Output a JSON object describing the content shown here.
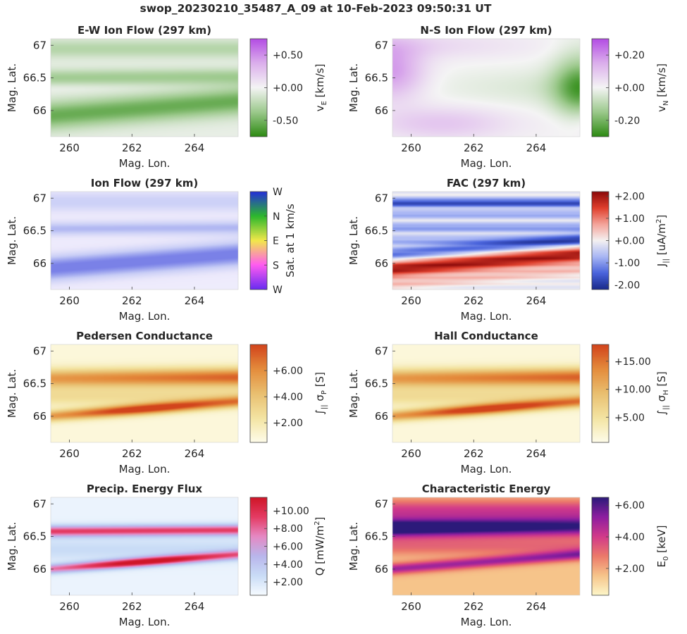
{
  "figure_title": "swop_20230210_35487_A_09 at 10-Feb-2023 09:50:31 UT",
  "chart_data": [
    {
      "type": "heatmap",
      "id": "ew",
      "title": "E-W Ion Flow (297 km)",
      "xlabel": "Mag. Lon.",
      "ylabel": "Mag. Lat.",
      "xlim": [
        259.4,
        265.4
      ],
      "ylim": [
        65.6,
        67.1
      ],
      "xticks": [
        260,
        262,
        264
      ],
      "yticks": [
        66,
        66.5,
        67
      ],
      "colorbar": {
        "label": "v_E [km/s]",
        "label_main": "v",
        "label_sub": "E",
        "label_rest": " [km/s]",
        "ticks": [
          "+0.50",
          "+0.00",
          "-0.50"
        ],
        "tick_values": [
          0.5,
          0.0,
          -0.5
        ],
        "range": [
          -0.75,
          0.75
        ],
        "colors": [
          "#2e8b14",
          "#9cc98c",
          "#f4f4f4",
          "#dcb0ec",
          "#b44ee4"
        ]
      },
      "colormap": [
        "#2e8b14",
        "#9cc98c",
        "#f4f4f4",
        "#dcb0ec",
        "#b44ee4"
      ],
      "field": {
        "bands": [
          [
            -0.55,
            65.95,
            0.1,
            -0.45
          ],
          [
            -0.25,
            66.55,
            0.1,
            -0.05
          ],
          [
            0.08,
            66.95,
            0.06,
            0.0
          ]
        ],
        "base": -0.15,
        "pattern": "ew"
      }
    },
    {
      "type": "heatmap",
      "id": "ns",
      "title": "N-S Ion Flow (297 km)",
      "xlabel": "Mag. Lon.",
      "ylabel": "Mag. Lat.",
      "xlim": [
        259.4,
        265.4
      ],
      "ylim": [
        65.6,
        67.1
      ],
      "xticks": [
        260,
        262,
        264
      ],
      "yticks": [
        66,
        66.5,
        67
      ],
      "colorbar": {
        "label": "v_N [km/s]",
        "label_main": "v",
        "label_sub": "N",
        "label_rest": " [km/s]",
        "ticks": [
          "+0.20",
          "+0.00",
          "-0.20"
        ],
        "tick_values": [
          0.2,
          0.0,
          -0.2
        ],
        "range": [
          -0.3,
          0.3
        ],
        "colors": [
          "#2e8b14",
          "#9cc98c",
          "#f4f4f4",
          "#dcb0ec",
          "#b44ee4"
        ]
      },
      "colormap": [
        "#2e8b14",
        "#9cc98c",
        "#f4f4f4",
        "#dcb0ec",
        "#b44ee4"
      ],
      "field": {
        "pattern": "ns"
      }
    },
    {
      "type": "heatmap",
      "id": "flow",
      "title": "Ion Flow (297 km)",
      "xlabel": "Mag. Lon.",
      "ylabel": "Mag. Lat.",
      "xlim": [
        259.4,
        265.4
      ],
      "ylim": [
        65.6,
        67.1
      ],
      "xticks": [
        260,
        262,
        264
      ],
      "yticks": [
        66,
        66.5,
        67
      ],
      "colorbar": {
        "label": "Sat. at 1 km/s",
        "ticks": [
          "W",
          "N",
          "E",
          "S",
          "W"
        ],
        "colors": [
          "#6a2cf0",
          "#ff5cf0",
          "#f2e84a",
          "#2db82d",
          "#2430d8"
        ]
      },
      "colormap": [
        "#5b5fe0",
        "#8f97ec",
        "#c8cdf6",
        "#ebe8fb",
        "#f6f4ff"
      ],
      "field": {
        "pattern": "flow"
      }
    },
    {
      "type": "heatmap",
      "id": "fac",
      "title": "FAC (297 km)",
      "xlabel": "Mag. Lon.",
      "ylabel": "Mag. Lat.",
      "xlim": [
        259.4,
        265.4
      ],
      "ylim": [
        65.6,
        67.1
      ],
      "xticks": [
        260,
        262,
        264
      ],
      "yticks": [
        66,
        66.5,
        67
      ],
      "colorbar": {
        "label": "J_|| [uA/m^2]",
        "label_main": "J",
        "label_sub": "||",
        "label_rest": " [uA/m",
        "label_sup": "2",
        "label_end": "]",
        "ticks": [
          "+2.00",
          "+1.00",
          "+0.00",
          "-1.00",
          "-2.00"
        ],
        "tick_values": [
          2,
          1,
          0,
          -1,
          -2
        ],
        "range": [
          -2.2,
          2.2
        ],
        "colors": [
          "#1a2a8c",
          "#4a64dc",
          "#a8b6f4",
          "#f4f1f1",
          "#f4a49a",
          "#e0402e",
          "#8c0a0a"
        ]
      },
      "colormap": [
        "#1a2a8c",
        "#4a64dc",
        "#a8b6f4",
        "#f4f1f1",
        "#f4a49a",
        "#e0402e",
        "#8c0a0a"
      ],
      "field": {
        "pattern": "fac"
      }
    },
    {
      "type": "heatmap",
      "id": "ped",
      "title": "Pedersen Conductance",
      "xlabel": "Mag. Lon.",
      "ylabel": "Mag. Lat.",
      "xlim": [
        259.4,
        265.4
      ],
      "ylim": [
        65.6,
        67.1
      ],
      "xticks": [
        260,
        262,
        264
      ],
      "yticks": [
        66,
        66.5,
        67
      ],
      "colorbar": {
        "label": "∫|| σP [S]",
        "label_main": "∫",
        "label_sub": "||",
        "label_rest": " σ",
        "label_sub2": "P",
        "label_end": " [S]",
        "ticks": [
          "+6.00",
          "+4.00",
          "+2.00"
        ],
        "tick_values": [
          6,
          4,
          2
        ],
        "range": [
          0.5,
          8.0
        ],
        "colors": [
          "#fefce8",
          "#f3e4a2",
          "#e9bf70",
          "#e48c3c",
          "#d2441c"
        ]
      },
      "colormap": [
        "#fefce8",
        "#f3e4a2",
        "#e9bf70",
        "#e48c3c",
        "#d2441c"
      ],
      "field": {
        "pattern": "cond"
      }
    },
    {
      "type": "heatmap",
      "id": "hall",
      "title": "Hall Conductance",
      "xlabel": "Mag. Lon.",
      "ylabel": "Mag. Lat.",
      "xlim": [
        259.4,
        265.4
      ],
      "ylim": [
        65.6,
        67.1
      ],
      "xticks": [
        260,
        262,
        264
      ],
      "yticks": [
        66,
        66.5,
        67
      ],
      "colorbar": {
        "label": "∫|| σH [S]",
        "label_main": "∫",
        "label_sub": "||",
        "label_rest": " σ",
        "label_sub2": "H",
        "label_end": " [S]",
        "ticks": [
          "+15.00",
          "+10.00",
          "+5.00"
        ],
        "tick_values": [
          15,
          10,
          5
        ],
        "range": [
          0.5,
          18.0
        ],
        "colors": [
          "#fefce8",
          "#f3e4a2",
          "#e9bf70",
          "#e48c3c",
          "#d2441c"
        ]
      },
      "colormap": [
        "#fefce8",
        "#f3e4a2",
        "#e9bf70",
        "#e48c3c",
        "#d2441c"
      ],
      "field": {
        "pattern": "cond"
      }
    },
    {
      "type": "heatmap",
      "id": "flux",
      "title": "Precip. Energy Flux",
      "xlabel": "Mag. Lon.",
      "ylabel": "Mag. Lat.",
      "xlim": [
        259.4,
        265.4
      ],
      "ylim": [
        65.6,
        67.1
      ],
      "xticks": [
        260,
        262,
        264
      ],
      "yticks": [
        66,
        66.5,
        67
      ],
      "colorbar": {
        "label": "Q [mW/m^2]",
        "label_main": "Q [mW/m",
        "label_sup": "2",
        "label_end": "]",
        "ticks": [
          "+10.00",
          "+8.00",
          "+6.00",
          "+4.00",
          "+2.00"
        ],
        "tick_values": [
          10,
          8,
          6,
          4,
          2
        ],
        "range": [
          0.5,
          11.5
        ],
        "colors": [
          "#f6fbff",
          "#c9dcf6",
          "#b9b6ec",
          "#e58ac4",
          "#e43c64",
          "#cf1628"
        ]
      },
      "colormap": [
        "#f6fbff",
        "#c9dcf6",
        "#b9b6ec",
        "#e58ac4",
        "#e43c64",
        "#cf1628"
      ],
      "field": {
        "pattern": "flux"
      }
    },
    {
      "type": "heatmap",
      "id": "char",
      "title": "Characteristic Energy",
      "xlabel": "Mag. Lon.",
      "ylabel": "Mag. Lat.",
      "xlim": [
        259.4,
        265.4
      ],
      "ylim": [
        65.6,
        67.1
      ],
      "xticks": [
        260,
        262,
        264
      ],
      "yticks": [
        66,
        66.5,
        67
      ],
      "colorbar": {
        "label": "E_0 [keV]",
        "label_main": "E",
        "label_sub": "0",
        "label_rest": " [keV]",
        "ticks": [
          "+6.00",
          "+4.00",
          "+2.00"
        ],
        "tick_values": [
          6,
          4,
          2
        ],
        "range": [
          0.3,
          6.5
        ],
        "colors": [
          "#fdf6c8",
          "#f6c48a",
          "#ec7a6a",
          "#d23a8a",
          "#8e1ea0",
          "#2c1a7a"
        ]
      },
      "colormap": [
        "#fdf6c8",
        "#f6c48a",
        "#ec7a6a",
        "#d23a8a",
        "#8e1ea0",
        "#2c1a7a"
      ],
      "field": {
        "pattern": "char"
      }
    }
  ]
}
